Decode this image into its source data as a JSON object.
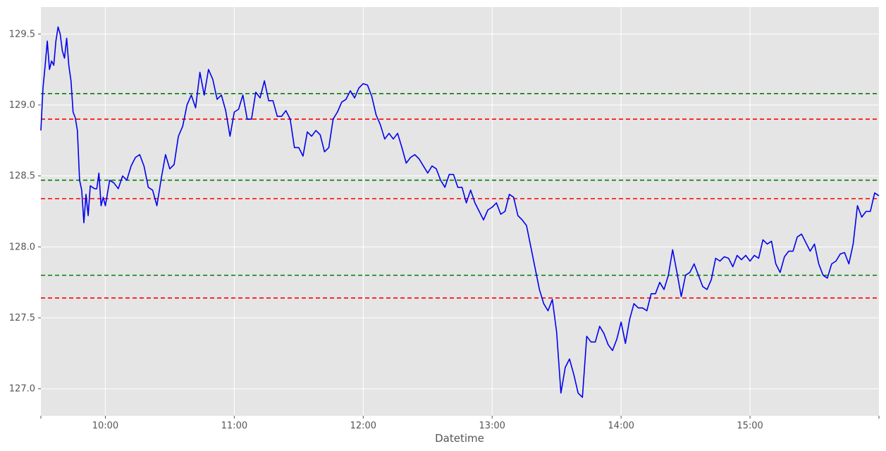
{
  "chart_data": {
    "type": "line",
    "title": "",
    "xlabel": "Datetime",
    "ylabel": "",
    "grid": true,
    "x_range": [
      "09:30",
      "16:00"
    ],
    "ylim": [
      126.81,
      129.69
    ],
    "x_ticks": [
      {
        "value": "10:00",
        "label": "10:00"
      },
      {
        "value": "11:00",
        "label": "11:00"
      },
      {
        "value": "12:00",
        "label": "12:00"
      },
      {
        "value": "13:00",
        "label": "13:00"
      },
      {
        "value": "14:00",
        "label": "14:00"
      },
      {
        "value": "15:00",
        "label": "15:00"
      }
    ],
    "y_ticks": [
      {
        "value": 127.0,
        "label": "127.0"
      },
      {
        "value": 127.5,
        "label": "127.5"
      },
      {
        "value": 128.0,
        "label": "128.0"
      },
      {
        "value": 128.5,
        "label": "128.5"
      },
      {
        "value": 129.0,
        "label": "129.0"
      },
      {
        "value": 129.5,
        "label": "129.5"
      }
    ],
    "series": [
      {
        "color": "#0000ee",
        "points": [
          [
            "09:30",
            128.82
          ],
          [
            "09:31",
            129.12
          ],
          [
            "09:32",
            129.28
          ],
          [
            "09:33",
            129.45
          ],
          [
            "09:34",
            129.25
          ],
          [
            "09:35",
            129.31
          ],
          [
            "09:36",
            129.28
          ],
          [
            "09:37",
            129.45
          ],
          [
            "09:38",
            129.55
          ],
          [
            "09:39",
            129.5
          ],
          [
            "09:40",
            129.38
          ],
          [
            "09:41",
            129.33
          ],
          [
            "09:42",
            129.47
          ],
          [
            "09:43",
            129.28
          ],
          [
            "09:44",
            129.17
          ],
          [
            "09:45",
            128.95
          ],
          [
            "09:46",
            128.91
          ],
          [
            "09:47",
            128.82
          ],
          [
            "09:48",
            128.47
          ],
          [
            "09:49",
            128.4
          ],
          [
            "09:50",
            128.17
          ],
          [
            "09:51",
            128.37
          ],
          [
            "09:52",
            128.22
          ],
          [
            "09:53",
            128.43
          ],
          [
            "09:54",
            128.42
          ],
          [
            "09:55",
            128.41
          ],
          [
            "09:56",
            128.41
          ],
          [
            "09:57",
            128.52
          ],
          [
            "09:58",
            128.29
          ],
          [
            "09:59",
            128.35
          ],
          [
            "10:00",
            128.29
          ],
          [
            "10:02",
            128.47
          ],
          [
            "10:04",
            128.45
          ],
          [
            "10:06",
            128.41
          ],
          [
            "10:08",
            128.5
          ],
          [
            "10:10",
            128.47
          ],
          [
            "10:12",
            128.57
          ],
          [
            "10:14",
            128.63
          ],
          [
            "10:16",
            128.65
          ],
          [
            "10:18",
            128.57
          ],
          [
            "10:20",
            128.42
          ],
          [
            "10:22",
            128.4
          ],
          [
            "10:24",
            128.29
          ],
          [
            "10:26",
            128.48
          ],
          [
            "10:28",
            128.65
          ],
          [
            "10:30",
            128.55
          ],
          [
            "10:32",
            128.58
          ],
          [
            "10:34",
            128.78
          ],
          [
            "10:36",
            128.85
          ],
          [
            "10:38",
            129.0
          ],
          [
            "10:40",
            129.07
          ],
          [
            "10:42",
            128.98
          ],
          [
            "10:44",
            129.23
          ],
          [
            "10:46",
            129.07
          ],
          [
            "10:48",
            129.25
          ],
          [
            "10:50",
            129.18
          ],
          [
            "10:52",
            129.04
          ],
          [
            "10:54",
            129.07
          ],
          [
            "10:56",
            128.96
          ],
          [
            "10:58",
            128.78
          ],
          [
            "11:00",
            128.95
          ],
          [
            "11:02",
            128.97
          ],
          [
            "11:04",
            129.07
          ],
          [
            "11:06",
            128.9
          ],
          [
            "11:08",
            128.9
          ],
          [
            "11:10",
            129.09
          ],
          [
            "11:12",
            129.05
          ],
          [
            "11:14",
            129.17
          ],
          [
            "11:16",
            129.03
          ],
          [
            "11:18",
            129.03
          ],
          [
            "11:20",
            128.92
          ],
          [
            "11:22",
            128.92
          ],
          [
            "11:24",
            128.96
          ],
          [
            "11:26",
            128.9
          ],
          [
            "11:28",
            128.7
          ],
          [
            "11:30",
            128.7
          ],
          [
            "11:32",
            128.64
          ],
          [
            "11:34",
            128.81
          ],
          [
            "11:36",
            128.78
          ],
          [
            "11:38",
            128.82
          ],
          [
            "11:40",
            128.79
          ],
          [
            "11:42",
            128.67
          ],
          [
            "11:44",
            128.7
          ],
          [
            "11:46",
            128.9
          ],
          [
            "11:48",
            128.95
          ],
          [
            "11:50",
            129.02
          ],
          [
            "11:52",
            129.04
          ],
          [
            "11:54",
            129.1
          ],
          [
            "11:56",
            129.05
          ],
          [
            "11:58",
            129.12
          ],
          [
            "12:00",
            129.15
          ],
          [
            "12:02",
            129.14
          ],
          [
            "12:04",
            129.06
          ],
          [
            "12:06",
            128.93
          ],
          [
            "12:08",
            128.86
          ],
          [
            "12:10",
            128.76
          ],
          [
            "12:12",
            128.8
          ],
          [
            "12:14",
            128.76
          ],
          [
            "12:16",
            128.8
          ],
          [
            "12:18",
            128.7
          ],
          [
            "12:20",
            128.59
          ],
          [
            "12:22",
            128.63
          ],
          [
            "12:24",
            128.65
          ],
          [
            "12:26",
            128.62
          ],
          [
            "12:28",
            128.57
          ],
          [
            "12:30",
            128.52
          ],
          [
            "12:32",
            128.57
          ],
          [
            "12:34",
            128.55
          ],
          [
            "12:36",
            128.47
          ],
          [
            "12:38",
            128.42
          ],
          [
            "12:40",
            128.51
          ],
          [
            "12:42",
            128.51
          ],
          [
            "12:44",
            128.42
          ],
          [
            "12:46",
            128.42
          ],
          [
            "12:48",
            128.31
          ],
          [
            "12:50",
            128.4
          ],
          [
            "12:52",
            128.31
          ],
          [
            "12:54",
            128.25
          ],
          [
            "12:56",
            128.19
          ],
          [
            "12:58",
            128.26
          ],
          [
            "13:00",
            128.28
          ],
          [
            "13:02",
            128.31
          ],
          [
            "13:04",
            128.23
          ],
          [
            "13:06",
            128.25
          ],
          [
            "13:08",
            128.37
          ],
          [
            "13:10",
            128.35
          ],
          [
            "13:12",
            128.22
          ],
          [
            "13:14",
            128.19
          ],
          [
            "13:16",
            128.15
          ],
          [
            "13:18",
            128.0
          ],
          [
            "13:20",
            127.85
          ],
          [
            "13:22",
            127.7
          ],
          [
            "13:24",
            127.6
          ],
          [
            "13:26",
            127.55
          ],
          [
            "13:28",
            127.63
          ],
          [
            "13:30",
            127.4
          ],
          [
            "13:32",
            126.97
          ],
          [
            "13:34",
            127.15
          ],
          [
            "13:36",
            127.21
          ],
          [
            "13:38",
            127.1
          ],
          [
            "13:40",
            126.97
          ],
          [
            "13:42",
            126.94
          ],
          [
            "13:44",
            127.37
          ],
          [
            "13:46",
            127.33
          ],
          [
            "13:48",
            127.33
          ],
          [
            "13:50",
            127.44
          ],
          [
            "13:52",
            127.39
          ],
          [
            "13:54",
            127.31
          ],
          [
            "13:56",
            127.27
          ],
          [
            "13:58",
            127.35
          ],
          [
            "14:00",
            127.47
          ],
          [
            "14:02",
            127.32
          ],
          [
            "14:04",
            127.49
          ],
          [
            "14:06",
            127.6
          ],
          [
            "14:08",
            127.57
          ],
          [
            "14:10",
            127.57
          ],
          [
            "14:12",
            127.55
          ],
          [
            "14:14",
            127.67
          ],
          [
            "14:16",
            127.67
          ],
          [
            "14:18",
            127.75
          ],
          [
            "14:20",
            127.7
          ],
          [
            "14:22",
            127.8
          ],
          [
            "14:24",
            127.98
          ],
          [
            "14:26",
            127.82
          ],
          [
            "14:28",
            127.65
          ],
          [
            "14:30",
            127.8
          ],
          [
            "14:32",
            127.82
          ],
          [
            "14:34",
            127.88
          ],
          [
            "14:36",
            127.8
          ],
          [
            "14:38",
            127.72
          ],
          [
            "14:40",
            127.7
          ],
          [
            "14:42",
            127.77
          ],
          [
            "14:44",
            127.92
          ],
          [
            "14:46",
            127.9
          ],
          [
            "14:48",
            127.93
          ],
          [
            "14:50",
            127.92
          ],
          [
            "14:52",
            127.86
          ],
          [
            "14:54",
            127.94
          ],
          [
            "14:56",
            127.91
          ],
          [
            "14:58",
            127.94
          ],
          [
            "15:00",
            127.9
          ],
          [
            "15:02",
            127.94
          ],
          [
            "15:04",
            127.92
          ],
          [
            "15:06",
            128.05
          ],
          [
            "15:08",
            128.02
          ],
          [
            "15:10",
            128.04
          ],
          [
            "15:12",
            127.88
          ],
          [
            "15:14",
            127.82
          ],
          [
            "15:16",
            127.93
          ],
          [
            "15:18",
            127.97
          ],
          [
            "15:20",
            127.97
          ],
          [
            "15:22",
            128.07
          ],
          [
            "15:24",
            128.09
          ],
          [
            "15:26",
            128.03
          ],
          [
            "15:28",
            127.97
          ],
          [
            "15:30",
            128.02
          ],
          [
            "15:32",
            127.88
          ],
          [
            "15:34",
            127.8
          ],
          [
            "15:36",
            127.78
          ],
          [
            "15:38",
            127.88
          ],
          [
            "15:40",
            127.9
          ],
          [
            "15:42",
            127.95
          ],
          [
            "15:44",
            127.96
          ],
          [
            "15:46",
            127.88
          ],
          [
            "15:48",
            128.02
          ],
          [
            "15:50",
            128.29
          ],
          [
            "15:52",
            128.21
          ],
          [
            "15:54",
            128.25
          ],
          [
            "15:56",
            128.25
          ],
          [
            "15:58",
            128.38
          ],
          [
            "16:00",
            128.36
          ]
        ]
      }
    ],
    "horizontal_lines": [
      {
        "value": 129.08,
        "color": "#008000",
        "style": "dashed"
      },
      {
        "value": 128.9,
        "color": "#ff0000",
        "style": "dashed"
      },
      {
        "value": 128.47,
        "color": "#008000",
        "style": "dashed"
      },
      {
        "value": 128.34,
        "color": "#ff0000",
        "style": "dashed"
      },
      {
        "value": 127.8,
        "color": "#008000",
        "style": "dashed"
      },
      {
        "value": 127.64,
        "color": "#ff0000",
        "style": "dashed"
      }
    ]
  }
}
